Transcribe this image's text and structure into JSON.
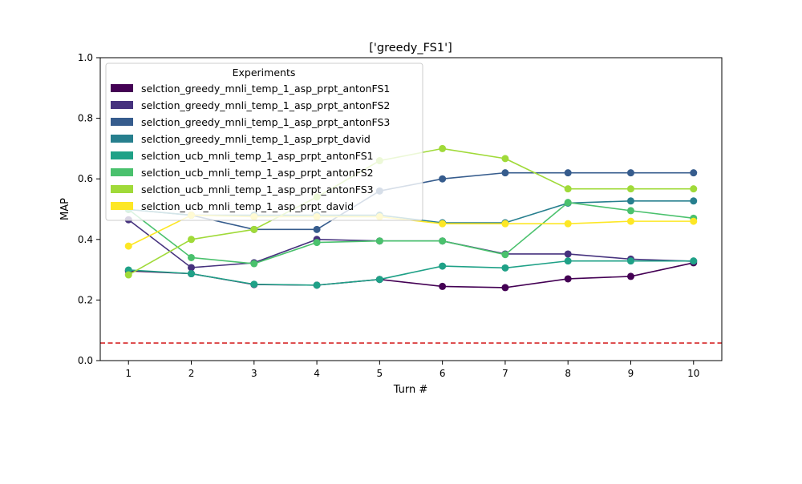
{
  "chart_data": {
    "type": "line",
    "title": "['greedy_FS1']",
    "xlabel": "Turn #",
    "ylabel": "MAP",
    "x": [
      1,
      2,
      3,
      4,
      5,
      6,
      7,
      8,
      9,
      10
    ],
    "xlim": [
      0.55,
      10.45
    ],
    "ylim": [
      0.0,
      1.0
    ],
    "xticks": [
      "1",
      "2",
      "3",
      "4",
      "5",
      "6",
      "7",
      "8",
      "9",
      "10"
    ],
    "yticks": [
      "0.0",
      "0.2",
      "0.4",
      "0.6",
      "0.8",
      "1.0"
    ],
    "ytick_values": [
      0.0,
      0.2,
      0.4,
      0.6,
      0.8,
      1.0
    ],
    "grid": false,
    "legend": {
      "title": "Experiments",
      "placement": "upper-left"
    },
    "reference_line": {
      "y": 0.058,
      "color": "#d62728",
      "style": "dashed"
    },
    "series": [
      {
        "name": "selction_greedy_mnli_temp_1_asp_prpt_antonFS1",
        "color": "#440154",
        "values": [
          0.296,
          0.287,
          0.251,
          0.249,
          0.268,
          0.245,
          0.241,
          0.27,
          0.278,
          0.323
        ]
      },
      {
        "name": "selction_greedy_mnli_temp_1_asp_prpt_antonFS2",
        "color": "#46327e",
        "values": [
          0.465,
          0.307,
          0.323,
          0.4,
          0.395,
          0.395,
          0.352,
          0.352,
          0.335,
          0.328
        ]
      },
      {
        "name": "selction_greedy_mnli_temp_1_asp_prpt_antonFS3",
        "color": "#365c8d",
        "values": [
          0.499,
          0.48,
          0.433,
          0.433,
          0.56,
          0.6,
          0.62,
          0.62,
          0.62,
          0.62
        ]
      },
      {
        "name": "selction_greedy_mnli_temp_1_asp_prpt_david",
        "color": "#277f8e",
        "values": [
          0.499,
          0.48,
          0.48,
          0.48,
          0.48,
          0.455,
          0.455,
          0.52,
          0.527,
          0.527
        ]
      },
      {
        "name": "selction_ucb_mnli_temp_1_asp_prpt_antonFS1",
        "color": "#1fa187",
        "values": [
          0.299,
          0.287,
          0.252,
          0.249,
          0.268,
          0.312,
          0.306,
          0.329,
          0.329,
          0.329
        ]
      },
      {
        "name": "selction_ucb_mnli_temp_1_asp_prpt_antonFS2",
        "color": "#4ac16d",
        "values": [
          0.499,
          0.34,
          0.32,
          0.39,
          0.395,
          0.395,
          0.35,
          0.522,
          0.495,
          0.47
        ]
      },
      {
        "name": "selction_ucb_mnli_temp_1_asp_prpt_antonFS3",
        "color": "#a0da39",
        "values": [
          0.283,
          0.4,
          0.433,
          0.54,
          0.66,
          0.7,
          0.667,
          0.567,
          0.567,
          0.567
        ]
      },
      {
        "name": "selction_ucb_mnli_temp_1_asp_prpt_david",
        "color": "#fde725",
        "values": [
          0.378,
          0.48,
          0.475,
          0.475,
          0.475,
          0.452,
          0.452,
          0.452,
          0.46,
          0.46
        ]
      }
    ]
  }
}
